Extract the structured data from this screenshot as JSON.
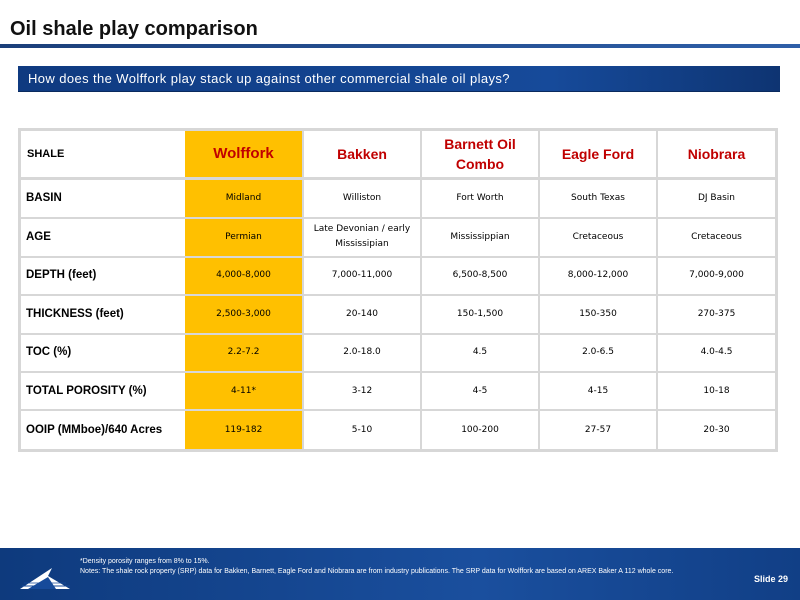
{
  "title": "Oil shale play comparison",
  "banner": "How does the Wolffork play stack up against other commercial shale oil plays?",
  "table": {
    "header_label": "SHALE",
    "columns": [
      "Wolffork",
      "Bakken",
      "Barnett Oil Combo",
      "Eagle Ford",
      "Niobrara"
    ],
    "rows": [
      {
        "label": "BASIN",
        "values": [
          "Midland",
          "Williston",
          "Fort Worth",
          "South Texas",
          "DJ Basin"
        ]
      },
      {
        "label": "AGE",
        "values": [
          "Permian",
          "Late Devonian / early Mississipian",
          "Mississippian",
          "Cretaceous",
          "Cretaceous"
        ]
      },
      {
        "label": "DEPTH (feet)",
        "values": [
          "4,000-8,000",
          "7,000-11,000",
          "6,500-8,500",
          "8,000-12,000",
          "7,000-9,000"
        ]
      },
      {
        "label": "THICKNESS (feet)",
        "values": [
          "2,500-3,000",
          "20-140",
          "150-1,500",
          "150-350",
          "270-375"
        ]
      },
      {
        "label": "TOC (%)",
        "values": [
          "2.2-7.2",
          "2.0-18.0",
          "4.5",
          "2.0-6.5",
          "4.0-4.5"
        ]
      },
      {
        "label": "TOTAL POROSITY (%)",
        "values": [
          "4-11*",
          "3-12",
          "4-5",
          "4-15",
          "10-18"
        ]
      },
      {
        "label": "OOIP (MMboe)/640 Acres",
        "values": [
          "119-182",
          "5-10",
          "100-200",
          "27-57",
          "20-30"
        ]
      }
    ]
  },
  "footer": {
    "note1": "*Density porosity ranges from 8% to 15%.",
    "note2": "Notes: The shale rock property (SRP) data for Bakken, Barnett, Eagle Ford and Niobrara are from industry publications. The SRP data for Wolffork are based on AREX Baker A 112 whole core.",
    "slide_label": "Slide 29"
  },
  "colors": {
    "highlight": "#ffc000",
    "header_text": "#c00000",
    "brand_blue": "#164a9a"
  }
}
